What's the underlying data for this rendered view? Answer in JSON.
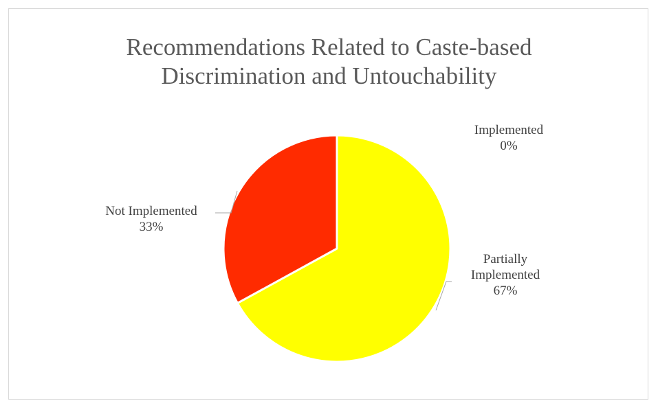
{
  "chart_data": {
    "type": "pie",
    "title_lines": [
      "Recommendations Related to Caste-based",
      "Discrimination and Untouchability"
    ],
    "slices": [
      {
        "label": "Partially Implemented",
        "label_lines": [
          "Partially",
          "Implemented"
        ],
        "value": 67,
        "display": "67%",
        "color": "#ffff00"
      },
      {
        "label": "Not Implemented",
        "label_lines": [
          "Not Implemented"
        ],
        "value": 33,
        "display": "33%",
        "color": "#ff2b00"
      },
      {
        "label": "Implemented",
        "label_lines": [
          "Implemented"
        ],
        "value": 0,
        "display": "0%",
        "color": "#00b050"
      }
    ],
    "legend": "none"
  }
}
